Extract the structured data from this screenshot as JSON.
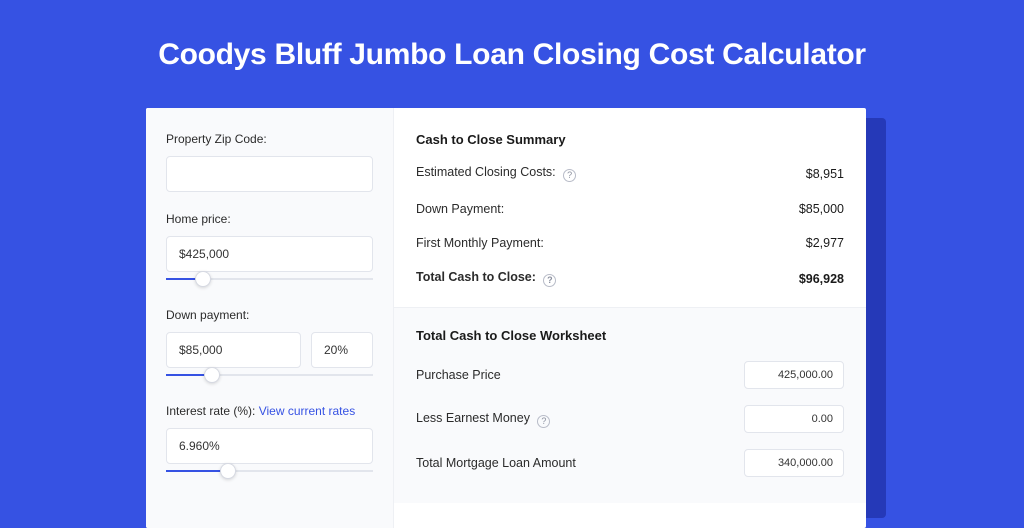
{
  "colors": {
    "page_bg": "#3652e3",
    "shadow_bg": "#2539b8",
    "card_bg": "#ffffff",
    "panel_bg": "#f9fafc",
    "border": "#e2e5ec",
    "text": "#2b2b2b",
    "link": "#3652e3",
    "slider_fill": "#3652e3",
    "slider_track": "#e2e5ec"
  },
  "header": {
    "title": "Coodys Bluff Jumbo Loan Closing Cost Calculator"
  },
  "form": {
    "zip": {
      "label": "Property Zip Code:",
      "value": ""
    },
    "home_price": {
      "label": "Home price:",
      "value": "$425,000",
      "slider_pct": 18
    },
    "down_payment": {
      "label": "Down payment:",
      "value": "$85,000",
      "pct_value": "20%",
      "slider_pct": 22
    },
    "interest_rate": {
      "label_prefix": "Interest rate (%): ",
      "link_text": "View current rates",
      "value": "6.960%",
      "slider_pct": 30
    }
  },
  "summary": {
    "title": "Cash to Close Summary",
    "rows": [
      {
        "label": "Estimated Closing Costs:",
        "help": true,
        "value": "$8,951",
        "bold": false
      },
      {
        "label": "Down Payment:",
        "help": false,
        "value": "$85,000",
        "bold": false
      },
      {
        "label": "First Monthly Payment:",
        "help": false,
        "value": "$2,977",
        "bold": false
      },
      {
        "label": "Total Cash to Close:",
        "help": true,
        "value": "$96,928",
        "bold": true
      }
    ]
  },
  "worksheet": {
    "title": "Total Cash to Close Worksheet",
    "rows": [
      {
        "label": "Purchase Price",
        "help": false,
        "value": "425,000.00"
      },
      {
        "label": "Less Earnest Money",
        "help": true,
        "value": "0.00"
      },
      {
        "label": "Total Mortgage Loan Amount",
        "help": false,
        "value": "340,000.00"
      }
    ]
  }
}
